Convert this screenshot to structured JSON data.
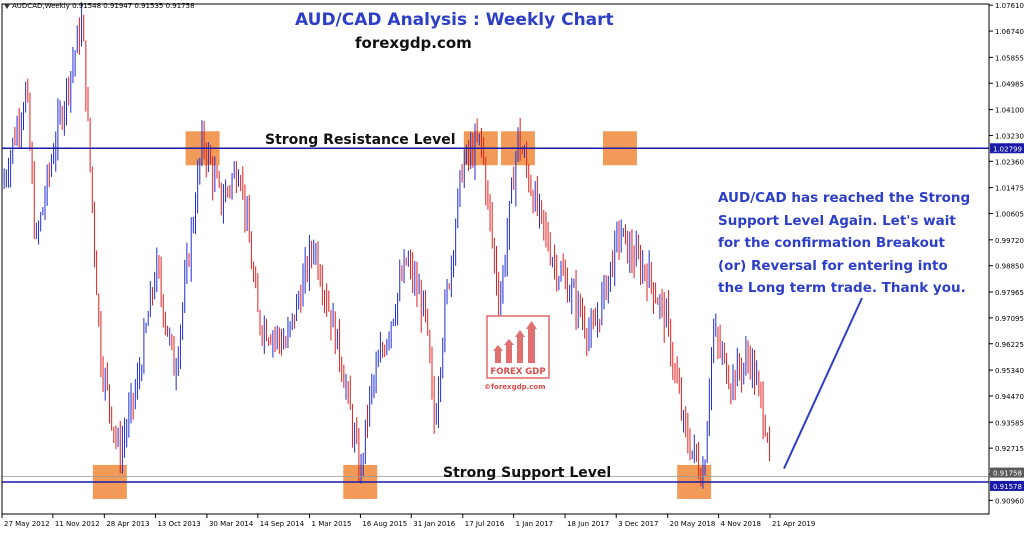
{
  "header": {
    "symbol_info": "AUDCAD,Weekly  0.91548 0.91947 0.91535 0.91758",
    "title": "AUD/CAD Analysis : Weekly Chart",
    "subtitle": "forexgdp.com"
  },
  "annotations": {
    "resistance_label": "Strong Resistance Level",
    "support_label": "Strong Support Level",
    "note_lines": [
      "AUD/CAD has reached the Strong",
      "Support Level Again. Let's wait",
      "for the confirmation Breakout",
      "(or) Reversal for entering into",
      "the Long term trade. Thank you."
    ],
    "logo_text": "©forexgdp.com",
    "logo_name": "FOREX GDP"
  },
  "colors": {
    "bull": "#1f2dd6",
    "bear": "#e02020",
    "level_line": "#1a1aa8",
    "highlight_box": "#f08a3c",
    "title": "#2e3fc7",
    "price_tag_resistance": "#1a1aa8",
    "price_tag_support": "#1a1aa8",
    "price_tag_current": "#5a5a5a"
  },
  "chart_data": {
    "type": "candlestick",
    "title": "AUD/CAD Analysis : Weekly Chart",
    "ylim": [
      0.905,
      1.0765
    ],
    "y_ticks": [
      "1.07610",
      "1.06740",
      "1.05855",
      "1.04985",
      "1.04100",
      "1.03230",
      "1.02360",
      "1.01475",
      "1.00605",
      "0.99720",
      "0.98850",
      "0.97965",
      "0.97095",
      "0.96225",
      "0.95340",
      "0.94470",
      "0.93585",
      "0.92715",
      "0.91845",
      "0.90960"
    ],
    "x_ticks": [
      "27 May 2012",
      "11 Nov 2012",
      "28 Apr 2013",
      "13 Oct 2013",
      "30 Mar 2014",
      "14 Sep 2014",
      "1 Mar 2015",
      "16 Aug 2015",
      "31 Jan 2016",
      "17 Jul 2016",
      "1 Jan 2017",
      "18 Jun 2017",
      "3 Dec 2017",
      "20 May 2018",
      "4 Nov 2018",
      "21 Apr 2019"
    ],
    "resistance_level": 1.02799,
    "support_level": 0.91578,
    "current_price": 0.91758,
    "price_tags": [
      "1.02799",
      "0.91758",
      "0.91578"
    ],
    "close_path": [
      [
        "27 May 2012",
        1.015
      ],
      [
        "Aug 2012",
        1.048
      ],
      [
        "Sep 2012",
        0.995
      ],
      [
        "Nov 2012",
        1.029
      ],
      [
        "Feb 2013",
        1.071
      ],
      [
        "Apr 2013",
        0.958
      ],
      [
        "Jun 2013",
        0.925
      ],
      [
        "Aug 2013",
        0.949
      ],
      [
        "Oct 2013",
        0.988
      ],
      [
        "Dec 2013",
        0.953
      ],
      [
        "Mar 2014",
        1.031
      ],
      [
        "May 2014",
        1.01
      ],
      [
        "Jul 2014",
        1.023
      ],
      [
        "Sep 2014",
        0.97
      ],
      [
        "Dec 2014",
        0.962
      ],
      [
        "Mar 2015",
        0.996
      ],
      [
        "Jun 2015",
        0.956
      ],
      [
        "Aug 2015",
        0.918
      ],
      [
        "Sep 2015",
        0.944
      ],
      [
        "Jan 2016",
        0.99
      ],
      [
        "Mar 2016",
        0.972
      ],
      [
        "Apr 2016",
        0.935
      ],
      [
        "May 2016",
        0.97
      ],
      [
        "Jul 2016",
        1.022
      ],
      [
        "Sep 2016",
        1.031
      ],
      [
        "Nov 2016",
        0.975
      ],
      [
        "Jan 2017",
        1.032
      ],
      [
        "Mar 2017",
        1.008
      ],
      [
        "May 2017",
        0.989
      ],
      [
        "Jul 2017",
        0.978
      ],
      [
        "Sep 2017",
        0.964
      ],
      [
        "Dec 2017",
        1.0
      ],
      [
        "Jan 2018",
        0.993
      ],
      [
        "Mar 2018",
        0.986
      ],
      [
        "May 2018",
        0.97
      ],
      [
        "Jul 2018",
        0.932
      ],
      [
        "Sep 2018",
        0.918
      ],
      [
        "Oct 2018",
        0.966
      ],
      [
        "Dec 2018",
        0.95
      ],
      [
        "Feb 2019",
        0.958
      ],
      [
        "Apr 2019",
        0.932
      ],
      [
        "21 Apr 2019",
        0.9176
      ]
    ],
    "highlight_zones": [
      {
        "date": "Mar 2014",
        "level": "resistance"
      },
      {
        "date": "Sep 2016",
        "level": "resistance"
      },
      {
        "date": "Jan 2017",
        "level": "resistance"
      },
      {
        "date": "Dec 2017",
        "level": "resistance"
      },
      {
        "date": "May 2013",
        "level": "support"
      },
      {
        "date": "Aug 2015",
        "level": "support"
      },
      {
        "date": "Aug 2018",
        "level": "support"
      }
    ]
  }
}
